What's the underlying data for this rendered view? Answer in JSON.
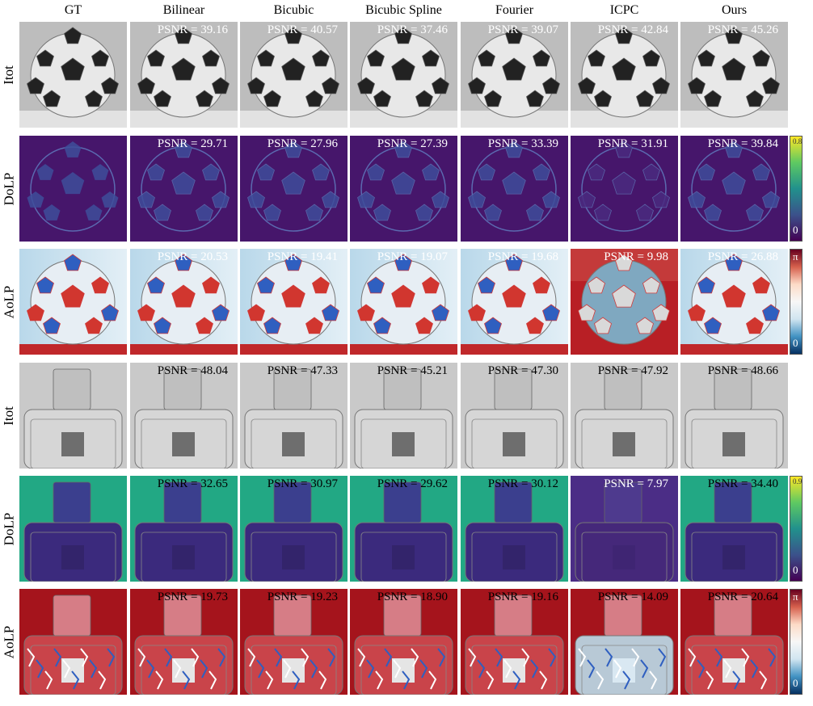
{
  "columns": [
    "GT",
    "Bilinear",
    "Bicubic",
    "Bicubic Spline",
    "Fourier",
    "ICPC",
    "Ours"
  ],
  "rows": [
    {
      "label": "Itot",
      "kind": "ball-itot",
      "psnr": [
        "39.16",
        "40.57",
        "37.46",
        "39.07",
        "42.84",
        "45.26"
      ]
    },
    {
      "label": "DoLP",
      "kind": "ball-dolp",
      "psnr": [
        "29.71",
        "27.96",
        "27.39",
        "33.39",
        "31.91",
        "39.84"
      ]
    },
    {
      "label": "AoLP",
      "kind": "ball-aolp",
      "psnr": [
        "20.53",
        "19.41",
        "19.07",
        "19.68",
        "9.98",
        "26.88"
      ]
    },
    {
      "label": "Itot",
      "kind": "box-itot",
      "psnr": [
        "48.04",
        "47.33",
        "45.21",
        "47.30",
        "47.92",
        "48.66"
      ]
    },
    {
      "label": "DoLP",
      "kind": "box-dolp",
      "psnr": [
        "32.65",
        "30.97",
        "29.62",
        "30.12",
        "7.97",
        "34.40"
      ]
    },
    {
      "label": "AoLP",
      "kind": "box-aolp",
      "psnr": [
        "19.73",
        "19.23",
        "18.90",
        "19.16",
        "14.09",
        "20.64"
      ]
    }
  ],
  "psnr_prefix": "PSNR = ",
  "colorbars": [
    {
      "row": 1,
      "top": "0.8",
      "bottom": "0",
      "type": "viridis"
    },
    {
      "row": 2,
      "top": "π",
      "bottom": "0",
      "type": "diverging"
    },
    {
      "row": 4,
      "top": "0.9",
      "bottom": "0",
      "type": "viridis"
    },
    {
      "row": 5,
      "top": "π",
      "bottom": "0",
      "type": "diverging"
    }
  ]
}
